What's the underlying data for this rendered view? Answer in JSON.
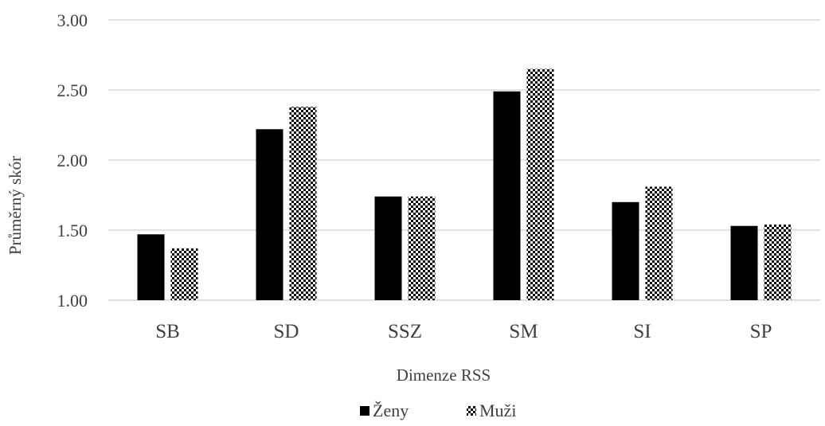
{
  "chart_data": {
    "type": "bar",
    "title": "",
    "xlabel": "Dimenze RSS",
    "ylabel": "Průměrný skór",
    "ylim": [
      1.0,
      3.0
    ],
    "yticks": [
      "1.00",
      "1.50",
      "2.00",
      "2.50",
      "3.00"
    ],
    "ytick_values": [
      1.0,
      1.5,
      2.0,
      2.5,
      3.0
    ],
    "grid": "horizontal",
    "legend_position": "bottom",
    "categories": [
      "SB",
      "SD",
      "SSZ",
      "SM",
      "SI",
      "SP"
    ],
    "series": [
      {
        "name": "Ženy",
        "color": "#000000",
        "pattern": "solid",
        "values": [
          1.47,
          2.22,
          1.74,
          2.49,
          1.7,
          1.53
        ]
      },
      {
        "name": "Muži",
        "color": "#000000",
        "pattern": "checker",
        "values": [
          1.37,
          2.38,
          1.74,
          2.65,
          1.81,
          1.54
        ]
      }
    ]
  }
}
